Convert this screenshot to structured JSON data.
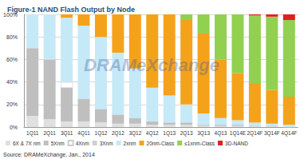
{
  "chart_data": {
    "type": "bar",
    "title": "Figure-1 NAND Flash Output by Node",
    "annotations": [
      "DRAMeXchange",
      "Source: DRAMeXchange, Jan., 2014"
    ],
    "categories": [
      "1Q11",
      "2Q11",
      "3Q11",
      "4Q11",
      "1Q12",
      "2Q12",
      "3Q12",
      "4Q12",
      "1Q13",
      "2Q13",
      "3Q13",
      "4Q13",
      "1Q14E",
      "2Q14F",
      "3Q14F",
      "4Q14F"
    ],
    "series": [
      {
        "name": "6X & 7X nm",
        "color": "#e0e0e0",
        "values": [
          10,
          7,
          5,
          5,
          4,
          3,
          3,
          2,
          2,
          2,
          1,
          1,
          1,
          1,
          1,
          0
        ]
      },
      {
        "name": "5Xnm",
        "color": "#bfbfbf",
        "values": [
          60,
          53,
          30,
          20,
          12,
          8,
          5,
          3,
          2,
          2,
          1,
          1,
          1,
          0,
          0,
          0
        ]
      },
      {
        "name": "4Xnm",
        "color": "#ffffff",
        "values": [
          0,
          0,
          5,
          0,
          0,
          0,
          0,
          0,
          0,
          0,
          0,
          0,
          0,
          0,
          0,
          0
        ]
      },
      {
        "name": "3Xnm",
        "color": "#d0d0d0",
        "values": [
          0,
          0,
          0,
          0,
          0,
          0,
          0,
          0,
          0,
          0,
          0,
          0,
          0,
          0,
          0,
          0
        ]
      },
      {
        "name": "2xnm",
        "color": "#c6e9f7",
        "values": [
          30,
          40,
          57,
          65,
          64,
          55,
          44,
          30,
          24,
          16,
          10,
          6,
          4,
          3,
          2,
          2
        ]
      },
      {
        "name": "20nm-Class",
        "color": "#f5a21b",
        "values": [
          0,
          0,
          3,
          10,
          20,
          34,
          48,
          65,
          72,
          75,
          71,
          52,
          42,
          35,
          30,
          25
        ]
      },
      {
        "name": "≤1xnm-Class",
        "color": "#92d050",
        "values": [
          0,
          0,
          0,
          0,
          0,
          0,
          0,
          0,
          0,
          5,
          17,
          40,
          52,
          60,
          65,
          68
        ]
      },
      {
        "name": "3D-NAND",
        "color": "#e02020",
        "values": [
          0,
          0,
          0,
          0,
          0,
          0,
          0,
          0,
          0,
          0,
          0,
          0,
          0,
          1,
          2,
          5
        ]
      }
    ],
    "stacked": true,
    "ylim": [
      0,
      100
    ],
    "yticks": [
      {
        "value": 0,
        "label": "0%"
      },
      {
        "value": 20,
        "label": "20%"
      },
      {
        "value": 40,
        "label": "40%"
      },
      {
        "value": 60,
        "label": "60%"
      },
      {
        "value": 80,
        "label": "80%"
      },
      {
        "value": 100,
        "label": "100%"
      }
    ],
    "grid": true,
    "legend": "bottom"
  }
}
